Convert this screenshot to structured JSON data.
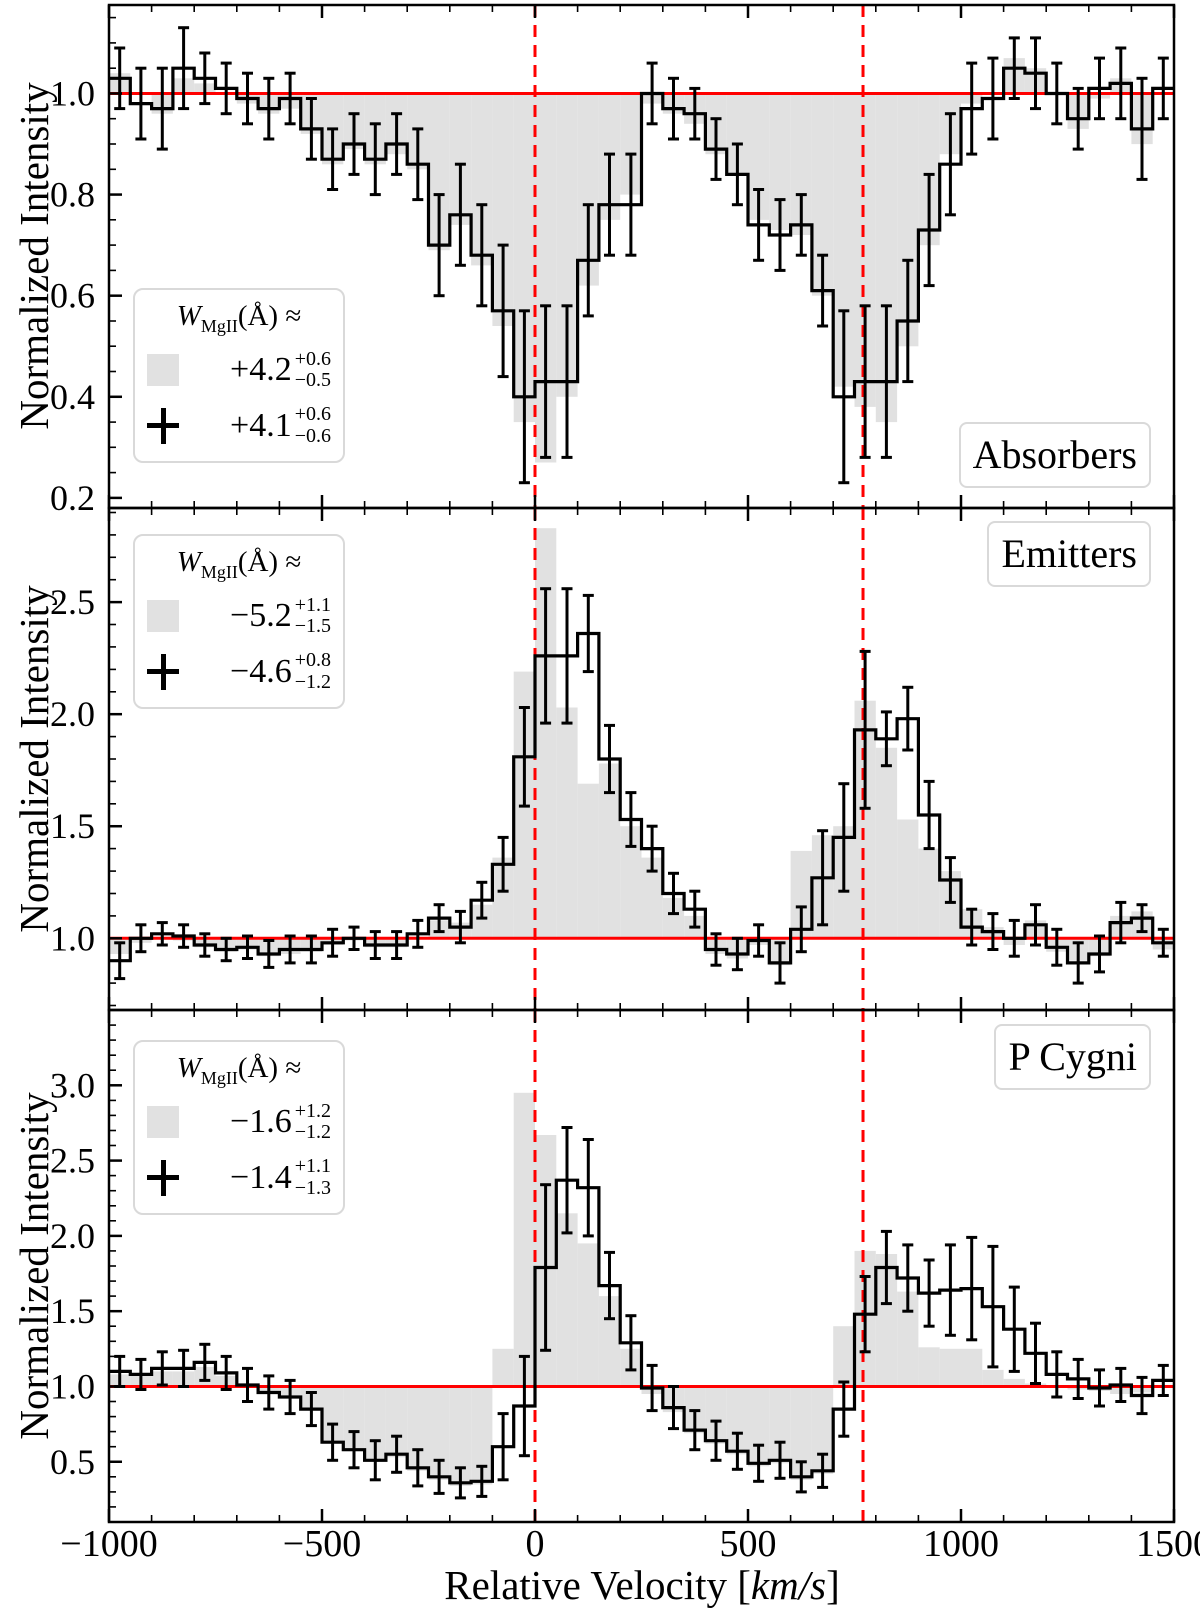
{
  "chart_data": {
    "type": "step-histogram-grid",
    "description": "Stacked MgII doublet spectra in relative-velocity space; gray filled histogram and black stepped histogram with error bars per panel",
    "x": {
      "label_parts": [
        "Relative Velocity [",
        "km/s",
        "]"
      ],
      "range": [
        -1000,
        1500
      ],
      "tick_values": [
        -1000,
        -500,
        0,
        500,
        1000,
        1500
      ],
      "ticks": [
        "−1000",
        "−500",
        "0",
        "500",
        "1000",
        "1500"
      ],
      "minor_step": 100,
      "bin_start": -1000,
      "bin_width": 50,
      "n_bins": 50
    },
    "reference": {
      "continuum_level": 1.0,
      "vline_velocities": [
        0,
        770
      ],
      "line_color": "#ff0000"
    },
    "panels": [
      {
        "type": "step-histogram",
        "panel_label": "Absorbers",
        "ylabel": "Normalized Intensity",
        "y_range": [
          0.18,
          1.175
        ],
        "y_tick_values": [
          0.2,
          0.4,
          0.6,
          0.8,
          1.0
        ],
        "y_ticks": [
          "0.2",
          "0.4",
          "0.6",
          "0.8",
          "1.0"
        ],
        "y_minor_step": 0.05,
        "legend": {
          "title_w": "W",
          "title_sub": "MgII",
          "title_rest": "(Å) ≈",
          "entries": [
            {
              "swatch": "gray-fill",
              "main": "+4.2",
              "err_plus": "+0.6",
              "err_minus": "−0.5"
            },
            {
              "swatch": "black-errorbar",
              "main": "+4.1",
              "err_plus": "+0.6",
              "err_minus": "−0.6"
            }
          ]
        },
        "series": {
          "gray_fill": {
            "name": "gray filled histogram (filled to continuum)",
            "color": "#e1e1e1",
            "values": [
              1.04,
              1.0,
              0.96,
              1.03,
              1.02,
              1.0,
              0.98,
              0.96,
              0.97,
              0.92,
              0.86,
              0.89,
              0.86,
              0.88,
              0.85,
              0.69,
              0.74,
              0.66,
              0.54,
              0.35,
              0.27,
              0.4,
              0.62,
              0.75,
              0.8,
              0.98,
              0.96,
              0.94,
              0.88,
              0.84,
              0.75,
              0.73,
              0.72,
              0.6,
              0.42,
              0.38,
              0.35,
              0.5,
              0.7,
              0.88,
              0.98,
              1.0,
              1.07,
              1.05,
              1.0,
              0.93,
              0.99,
              1.03,
              0.9,
              1.0
            ]
          },
          "black_step": {
            "name": "black stepped histogram with error bars",
            "color": "#000000",
            "values": [
              1.03,
              0.98,
              0.97,
              1.05,
              1.03,
              1.01,
              0.99,
              0.97,
              0.99,
              0.93,
              0.87,
              0.9,
              0.87,
              0.9,
              0.86,
              0.7,
              0.76,
              0.68,
              0.57,
              0.4,
              0.43,
              0.43,
              0.67,
              0.78,
              0.78,
              1.0,
              0.97,
              0.96,
              0.89,
              0.84,
              0.74,
              0.72,
              0.74,
              0.61,
              0.4,
              0.43,
              0.43,
              0.55,
              0.73,
              0.86,
              0.97,
              0.99,
              1.05,
              1.04,
              1.0,
              0.95,
              1.01,
              1.02,
              0.93,
              1.01
            ],
            "errors": [
              0.06,
              0.07,
              0.08,
              0.08,
              0.05,
              0.05,
              0.05,
              0.06,
              0.05,
              0.06,
              0.06,
              0.06,
              0.07,
              0.06,
              0.07,
              0.1,
              0.1,
              0.1,
              0.13,
              0.17,
              0.15,
              0.15,
              0.11,
              0.1,
              0.1,
              0.06,
              0.06,
              0.05,
              0.06,
              0.06,
              0.07,
              0.07,
              0.06,
              0.07,
              0.17,
              0.15,
              0.15,
              0.12,
              0.11,
              0.1,
              0.09,
              0.08,
              0.06,
              0.07,
              0.06,
              0.06,
              0.06,
              0.07,
              0.1,
              0.06
            ]
          }
        }
      },
      {
        "type": "step-histogram",
        "panel_label": "Emitters",
        "ylabel": "Normalized Intensity",
        "y_range": [
          0.68,
          2.92
        ],
        "y_tick_values": [
          1.0,
          1.5,
          2.0,
          2.5
        ],
        "y_ticks": [
          "1.0",
          "1.5",
          "2.0",
          "2.5"
        ],
        "y_minor_step": 0.1,
        "legend": {
          "title_w": "W",
          "title_sub": "MgII",
          "title_rest": "(Å) ≈",
          "entries": [
            {
              "swatch": "gray-fill",
              "main": "−5.2",
              "err_plus": "+1.1",
              "err_minus": "−1.5"
            },
            {
              "swatch": "black-errorbar",
              "main": "−4.6",
              "err_plus": "+0.8",
              "err_minus": "−1.2"
            }
          ]
        },
        "series": {
          "gray_fill": {
            "name": "gray filled histogram (filled to continuum)",
            "color": "#e1e1e1",
            "values": [
              0.93,
              0.98,
              1.0,
              0.99,
              0.96,
              0.94,
              0.95,
              0.92,
              0.93,
              0.94,
              0.97,
              0.99,
              0.96,
              0.96,
              1.0,
              1.08,
              1.07,
              1.15,
              1.36,
              2.19,
              2.83,
              2.03,
              1.69,
              1.78,
              1.5,
              1.36,
              1.18,
              1.1,
              0.93,
              0.91,
              0.97,
              0.88,
              1.39,
              1.46,
              1.5,
              2.06,
              1.85,
              1.53,
              1.4,
              1.3,
              1.13,
              1.05,
              0.97,
              1.08,
              0.94,
              0.9,
              0.92,
              1.1,
              1.12,
              0.95
            ]
          },
          "black_step": {
            "name": "black stepped histogram with error bars",
            "color": "#000000",
            "values": [
              0.9,
              1.0,
              1.02,
              1.01,
              0.97,
              0.95,
              0.96,
              0.93,
              0.95,
              0.95,
              0.98,
              1.0,
              0.97,
              0.97,
              1.02,
              1.09,
              1.05,
              1.17,
              1.33,
              1.81,
              2.26,
              2.26,
              2.36,
              1.8,
              1.53,
              1.4,
              1.2,
              1.13,
              0.95,
              0.93,
              0.99,
              0.89,
              1.04,
              1.27,
              1.45,
              1.93,
              1.89,
              1.98,
              1.55,
              1.26,
              1.05,
              1.03,
              1.0,
              1.06,
              0.96,
              0.89,
              0.93,
              1.07,
              1.09,
              0.98
            ],
            "errors": [
              0.08,
              0.06,
              0.05,
              0.05,
              0.05,
              0.05,
              0.05,
              0.06,
              0.06,
              0.06,
              0.06,
              0.05,
              0.06,
              0.06,
              0.06,
              0.06,
              0.07,
              0.08,
              0.12,
              0.22,
              0.3,
              0.3,
              0.17,
              0.15,
              0.12,
              0.1,
              0.09,
              0.08,
              0.07,
              0.07,
              0.07,
              0.09,
              0.1,
              0.21,
              0.24,
              0.35,
              0.12,
              0.14,
              0.15,
              0.1,
              0.08,
              0.08,
              0.08,
              0.09,
              0.08,
              0.09,
              0.08,
              0.09,
              0.06,
              0.06
            ]
          }
        }
      },
      {
        "type": "step-histogram",
        "panel_label": "P Cygni",
        "ylabel": "Normalized Intensity",
        "y_range": [
          0.1,
          3.5
        ],
        "y_tick_values": [
          0.5,
          1.0,
          1.5,
          2.0,
          2.5,
          3.0
        ],
        "y_ticks": [
          "0.5",
          "1.0",
          "1.5",
          "2.0",
          "2.5",
          "3.0"
        ],
        "y_minor_step": 0.1,
        "legend": {
          "title_w": "W",
          "title_sub": "MgII",
          "title_rest": "(Å) ≈",
          "entries": [
            {
              "swatch": "gray-fill",
              "main": "−1.6",
              "err_plus": "+1.2",
              "err_minus": "−1.2"
            },
            {
              "swatch": "black-errorbar",
              "main": "−1.4",
              "err_plus": "+1.1",
              "err_minus": "−1.3"
            }
          ]
        },
        "series": {
          "gray_fill": {
            "name": "gray filled histogram (filled to continuum)",
            "color": "#e1e1e1",
            "values": [
              1.08,
              1.07,
              1.1,
              1.1,
              1.13,
              1.07,
              1.0,
              0.95,
              0.92,
              0.84,
              0.62,
              0.57,
              0.5,
              0.53,
              0.44,
              0.38,
              0.34,
              0.35,
              1.25,
              2.95,
              2.67,
              2.15,
              1.95,
              1.6,
              1.25,
              0.95,
              0.83,
              0.69,
              0.62,
              0.55,
              0.47,
              0.49,
              0.38,
              0.42,
              1.4,
              1.9,
              1.88,
              1.63,
              1.26,
              1.25,
              1.25,
              1.11,
              1.05,
              1.02,
              1.0,
              0.98,
              0.97,
              0.95,
              0.96,
              1.0
            ]
          },
          "black_step": {
            "name": "black stepped histogram with error bars",
            "color": "#000000",
            "values": [
              1.1,
              1.08,
              1.12,
              1.12,
              1.16,
              1.09,
              1.01,
              0.96,
              0.93,
              0.85,
              0.63,
              0.58,
              0.51,
              0.55,
              0.46,
              0.4,
              0.36,
              0.37,
              0.6,
              0.87,
              1.79,
              2.37,
              2.32,
              1.67,
              1.29,
              0.99,
              0.86,
              0.71,
              0.64,
              0.57,
              0.49,
              0.51,
              0.4,
              0.44,
              0.85,
              1.48,
              1.79,
              1.72,
              1.62,
              1.64,
              1.65,
              1.53,
              1.38,
              1.22,
              1.08,
              1.05,
              0.99,
              1.01,
              0.94,
              1.04
            ],
            "errors": [
              0.1,
              0.1,
              0.11,
              0.12,
              0.12,
              0.11,
              0.11,
              0.11,
              0.11,
              0.11,
              0.12,
              0.12,
              0.13,
              0.12,
              0.12,
              0.11,
              0.1,
              0.1,
              0.22,
              0.33,
              0.55,
              0.35,
              0.32,
              0.22,
              0.18,
              0.15,
              0.14,
              0.13,
              0.13,
              0.12,
              0.12,
              0.12,
              0.1,
              0.11,
              0.18,
              0.25,
              0.24,
              0.22,
              0.22,
              0.3,
              0.34,
              0.4,
              0.28,
              0.2,
              0.15,
              0.13,
              0.12,
              0.11,
              0.12,
              0.1
            ]
          }
        }
      }
    ]
  }
}
